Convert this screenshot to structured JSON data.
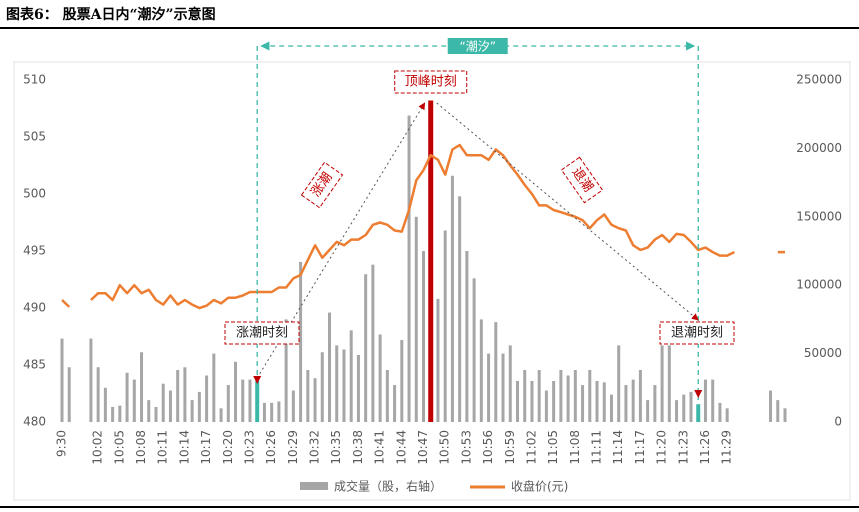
{
  "chart_data": {
    "type": "bar_line",
    "title": "图表6：  股票A日内“潮汐”示意图",
    "categories": [
      "9:30",
      null,
      null,
      null,
      null,
      "10:02",
      null,
      null,
      "10:05",
      null,
      null,
      "10:08",
      null,
      null,
      "10:11",
      null,
      null,
      "10:14",
      null,
      null,
      "10:17",
      null,
      null,
      "10:20",
      null,
      null,
      "10:23",
      null,
      null,
      "10:26",
      null,
      null,
      "10:29",
      null,
      null,
      "10:32",
      null,
      null,
      "10:35",
      null,
      null,
      "10:38",
      null,
      null,
      "10:41",
      null,
      null,
      "10:44",
      null,
      null,
      "10:47",
      null,
      null,
      "10:50",
      null,
      null,
      "10:53",
      null,
      null,
      "10:56",
      null,
      null,
      "10:59",
      null,
      null,
      "11:02",
      null,
      null,
      "11:05",
      null,
      null,
      "11:08",
      null,
      null,
      "11:11",
      null,
      null,
      "11:14",
      null,
      null,
      "11:17",
      null,
      null,
      "11:20",
      null,
      null,
      "11:23",
      null,
      null,
      "11:26",
      null,
      null,
      "11:29",
      null,
      null,
      null,
      null,
      null,
      null,
      null,
      null
    ],
    "series": [
      {
        "name": "成交量（股，右轴）",
        "type": "bar",
        "axis": "y2",
        "color": "#a6a6a6",
        "values": [
          61000,
          40000,
          null,
          null,
          61000,
          40000,
          25000,
          11000,
          12000,
          36000,
          31000,
          51000,
          16000,
          11000,
          28000,
          23000,
          38000,
          40000,
          16000,
          22000,
          34000,
          50000,
          10000,
          27000,
          44000,
          31000,
          31000,
          30000,
          14000,
          14000,
          15000,
          75000,
          23000,
          117000,
          38000,
          32000,
          51000,
          80000,
          56000,
          53000,
          67000,
          49000,
          108000,
          115000,
          64000,
          38000,
          27000,
          60000,
          224000,
          150000,
          125000,
          235000,
          90000,
          140000,
          180000,
          165000,
          125000,
          105000,
          75000,
          50000,
          73000,
          50000,
          56000,
          30000,
          38000,
          30000,
          38000,
          23000,
          30000,
          38000,
          34000,
          38000,
          27000,
          38000,
          30000,
          29000,
          20000,
          56000,
          27000,
          31000,
          38000,
          16000,
          27000,
          56000,
          56000,
          16000,
          20000,
          22000,
          13000,
          31000,
          31000,
          14000,
          10000,
          null,
          null,
          null,
          null,
          null,
          23000,
          16000,
          10000
        ]
      },
      {
        "name": "收盘价(元)",
        "type": "line",
        "color": "#ed7d31",
        "values": [
          490.7,
          490.1,
          null,
          null,
          490.7,
          491.3,
          491.3,
          490.7,
          492.0,
          491.3,
          492.0,
          491.3,
          491.6,
          490.7,
          490.3,
          491.1,
          490.3,
          490.7,
          490.3,
          490.0,
          490.2,
          490.7,
          490.4,
          490.9,
          490.9,
          491.1,
          491.4,
          491.4,
          491.4,
          491.4,
          491.8,
          491.8,
          492.6,
          492.9,
          494.2,
          495.5,
          494.4,
          495.1,
          495.8,
          495.5,
          496.0,
          496.0,
          496.4,
          497.3,
          497.5,
          497.3,
          496.8,
          496.7,
          498.6,
          501.2,
          502.1,
          503.4,
          503.0,
          501.7,
          503.9,
          504.3,
          503.4,
          503.4,
          503.4,
          503.0,
          503.9,
          503.4,
          502.5,
          501.7,
          500.8,
          500.0,
          499.0,
          499.0,
          498.6,
          498.4,
          498.2,
          498.0,
          497.7,
          497.0,
          497.7,
          498.2,
          497.3,
          497.0,
          496.8,
          495.5,
          495.1,
          495.3,
          496.0,
          496.4,
          495.8,
          496.5,
          496.4,
          495.8,
          495.1,
          495.3,
          494.9,
          494.6,
          494.6,
          494.9,
          null,
          null,
          null,
          null,
          null,
          494.9,
          494.9
        ]
      }
    ],
    "highlights": [
      {
        "index": 27,
        "color": "#3cb8a8"
      },
      {
        "index": 51,
        "color": "#c00000"
      },
      {
        "index": 88,
        "color": "#3cb8a8"
      }
    ],
    "annotations": {
      "tide": "“潮汐”",
      "peak": "顶峰时刻",
      "rise": "涨潮",
      "ebb": "退潮",
      "rise_moment": "涨潮时刻",
      "ebb_moment": "退潮时刻"
    },
    "ylim": [
      480,
      510
    ],
    "yticks": [
      480,
      485,
      490,
      495,
      500,
      505,
      510
    ],
    "y2lim": [
      0,
      250000
    ],
    "y2ticks": [
      0,
      50000,
      100000,
      150000,
      200000,
      250000
    ],
    "legend": "bottom"
  }
}
